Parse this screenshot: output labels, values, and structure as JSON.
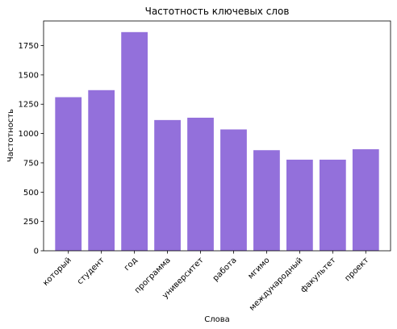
{
  "chart_data": {
    "type": "bar",
    "title": "Частотность ключевых слов",
    "xlabel": "Слова",
    "ylabel": "Частотность",
    "categories": [
      "который",
      "студент",
      "год",
      "программа",
      "университет",
      "работа",
      "мгимо",
      "международный",
      "факультет",
      "проект"
    ],
    "values": [
      1310,
      1370,
      1865,
      1115,
      1135,
      1035,
      858,
      777,
      777,
      866
    ],
    "y_ticks": [
      0,
      250,
      500,
      750,
      1000,
      1250,
      1500,
      1750
    ],
    "ylim": [
      0,
      1960
    ],
    "grid": false,
    "bar_color": "#9370db",
    "x_tick_rotation_deg": 45
  }
}
